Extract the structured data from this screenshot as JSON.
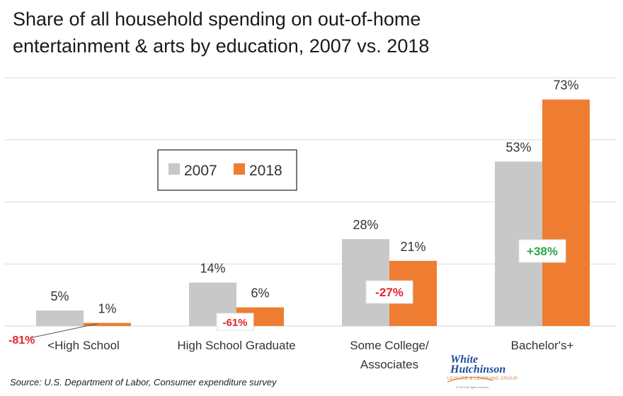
{
  "title_line1": "Share of all household spending on out-of-home",
  "title_line2": "entertainment & arts by education, 2007 vs. 2018",
  "source": "Source: U.S. Department of Labor, Consumer expenditure survey",
  "logo": {
    "line1": "White",
    "line2": "Hutchinson",
    "line3": "LEISURE & LEARNING GROUP",
    "line4": "© 2019 All rights reserved"
  },
  "colors": {
    "s2007": "#c8c8c8",
    "s2018": "#ee7d31",
    "negative": "#e3232c",
    "positive": "#2aa64a",
    "grid": "#d9d9d9"
  },
  "chart_data": {
    "type": "bar",
    "categories": [
      "<High School",
      "High School Graduate",
      "Some College/\nAssociates",
      "Bachelor's+"
    ],
    "series": [
      {
        "name": "2007",
        "values": [
          5,
          14,
          28,
          53
        ],
        "labels": [
          "5%",
          "14%",
          "28%",
          "53%"
        ]
      },
      {
        "name": "2018",
        "values": [
          1,
          6,
          21,
          73
        ],
        "labels": [
          "1%",
          "6%",
          "21%",
          "73%"
        ]
      }
    ],
    "changes": [
      "-81%",
      "-61%",
      "-27%",
      "+38%"
    ],
    "ylim": [
      0,
      80
    ],
    "grid": true,
    "legend": "top-left"
  }
}
